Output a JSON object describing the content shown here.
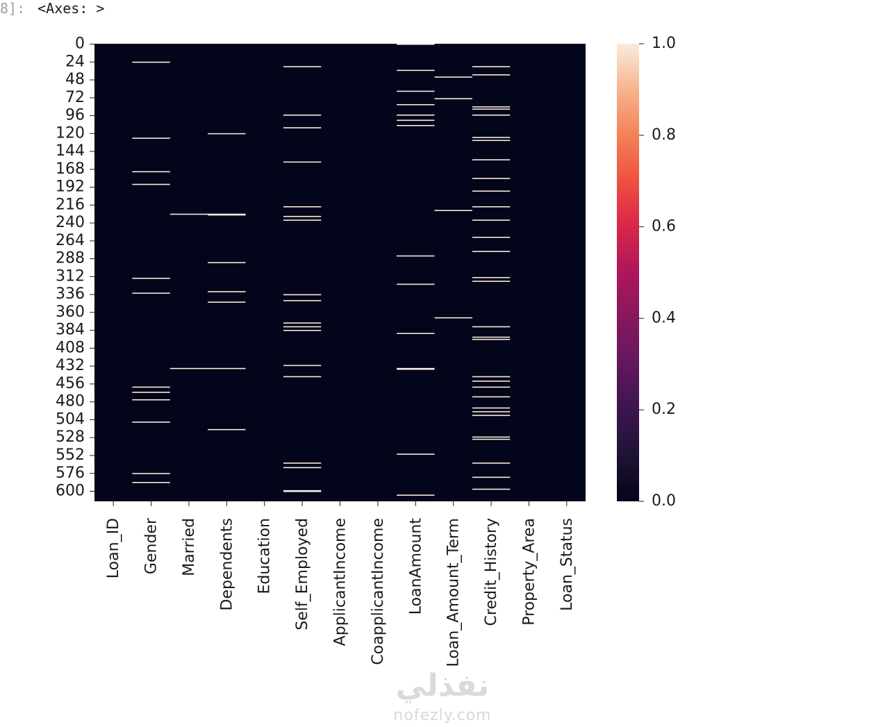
{
  "cell": {
    "prompt": "8]:",
    "output": "<Axes: >"
  },
  "watermark": {
    "arabic": "نفذلي",
    "latin": "nofezly.com"
  },
  "chart_data": {
    "type": "heatmap",
    "title": "",
    "xlabel": "",
    "ylabel": "",
    "n_rows": 614,
    "columns": [
      "Loan_ID",
      "Gender",
      "Married",
      "Dependents",
      "Education",
      "Self_Employed",
      "ApplicantIncome",
      "CoapplicantIncome",
      "LoanAmount",
      "Loan_Amount_Term",
      "Credit_History",
      "Property_Area",
      "Loan_Status"
    ],
    "y_ticks": [
      0,
      24,
      48,
      72,
      96,
      120,
      144,
      168,
      192,
      216,
      240,
      264,
      288,
      312,
      336,
      360,
      384,
      408,
      432,
      456,
      480,
      504,
      528,
      552,
      576,
      600
    ],
    "colorbar": {
      "ticks": [
        0.0,
        0.2,
        0.4,
        0.6,
        0.8,
        1.0
      ],
      "tick_labels": [
        "0.0",
        "0.2",
        "0.4",
        "0.6",
        "0.8",
        "1.0"
      ],
      "vmin": 0.0,
      "vmax": 1.0,
      "colormap": "rocket",
      "low_color": "#03051a",
      "high_color": "#faebdd"
    },
    "missing_rows": {
      "Loan_ID": [],
      "Gender": [
        24,
        126,
        171,
        188,
        314,
        334,
        460,
        467,
        477,
        507,
        576,
        588
      ],
      "Married": [
        228,
        435
      ],
      "Dependents": [
        120,
        228,
        229,
        293,
        332,
        346,
        435,
        517
      ],
      "Education": [],
      "Self_Employed": [
        30,
        95,
        112,
        158,
        218,
        231,
        236,
        336,
        344,
        374,
        379,
        384,
        431,
        446,
        562,
        568,
        599,
        600
      ],
      "ApplicantIncome": [],
      "CoapplicantIncome": [],
      "LoanAmount": [
        0,
        35,
        63,
        81,
        95,
        102,
        109,
        284,
        322,
        388,
        435,
        436,
        550,
        605
      ],
      "Loan_Amount_Term": [
        44,
        73,
        223,
        367
      ],
      "Credit_History": [
        30,
        41,
        84,
        87,
        95,
        125,
        129,
        155,
        180,
        197,
        218,
        236,
        259,
        278,
        313,
        318,
        379,
        393,
        396,
        446,
        452,
        460,
        473,
        488,
        493,
        498,
        527,
        530,
        562,
        581,
        597
      ],
      "Property_Area": [],
      "Loan_Status": []
    }
  }
}
